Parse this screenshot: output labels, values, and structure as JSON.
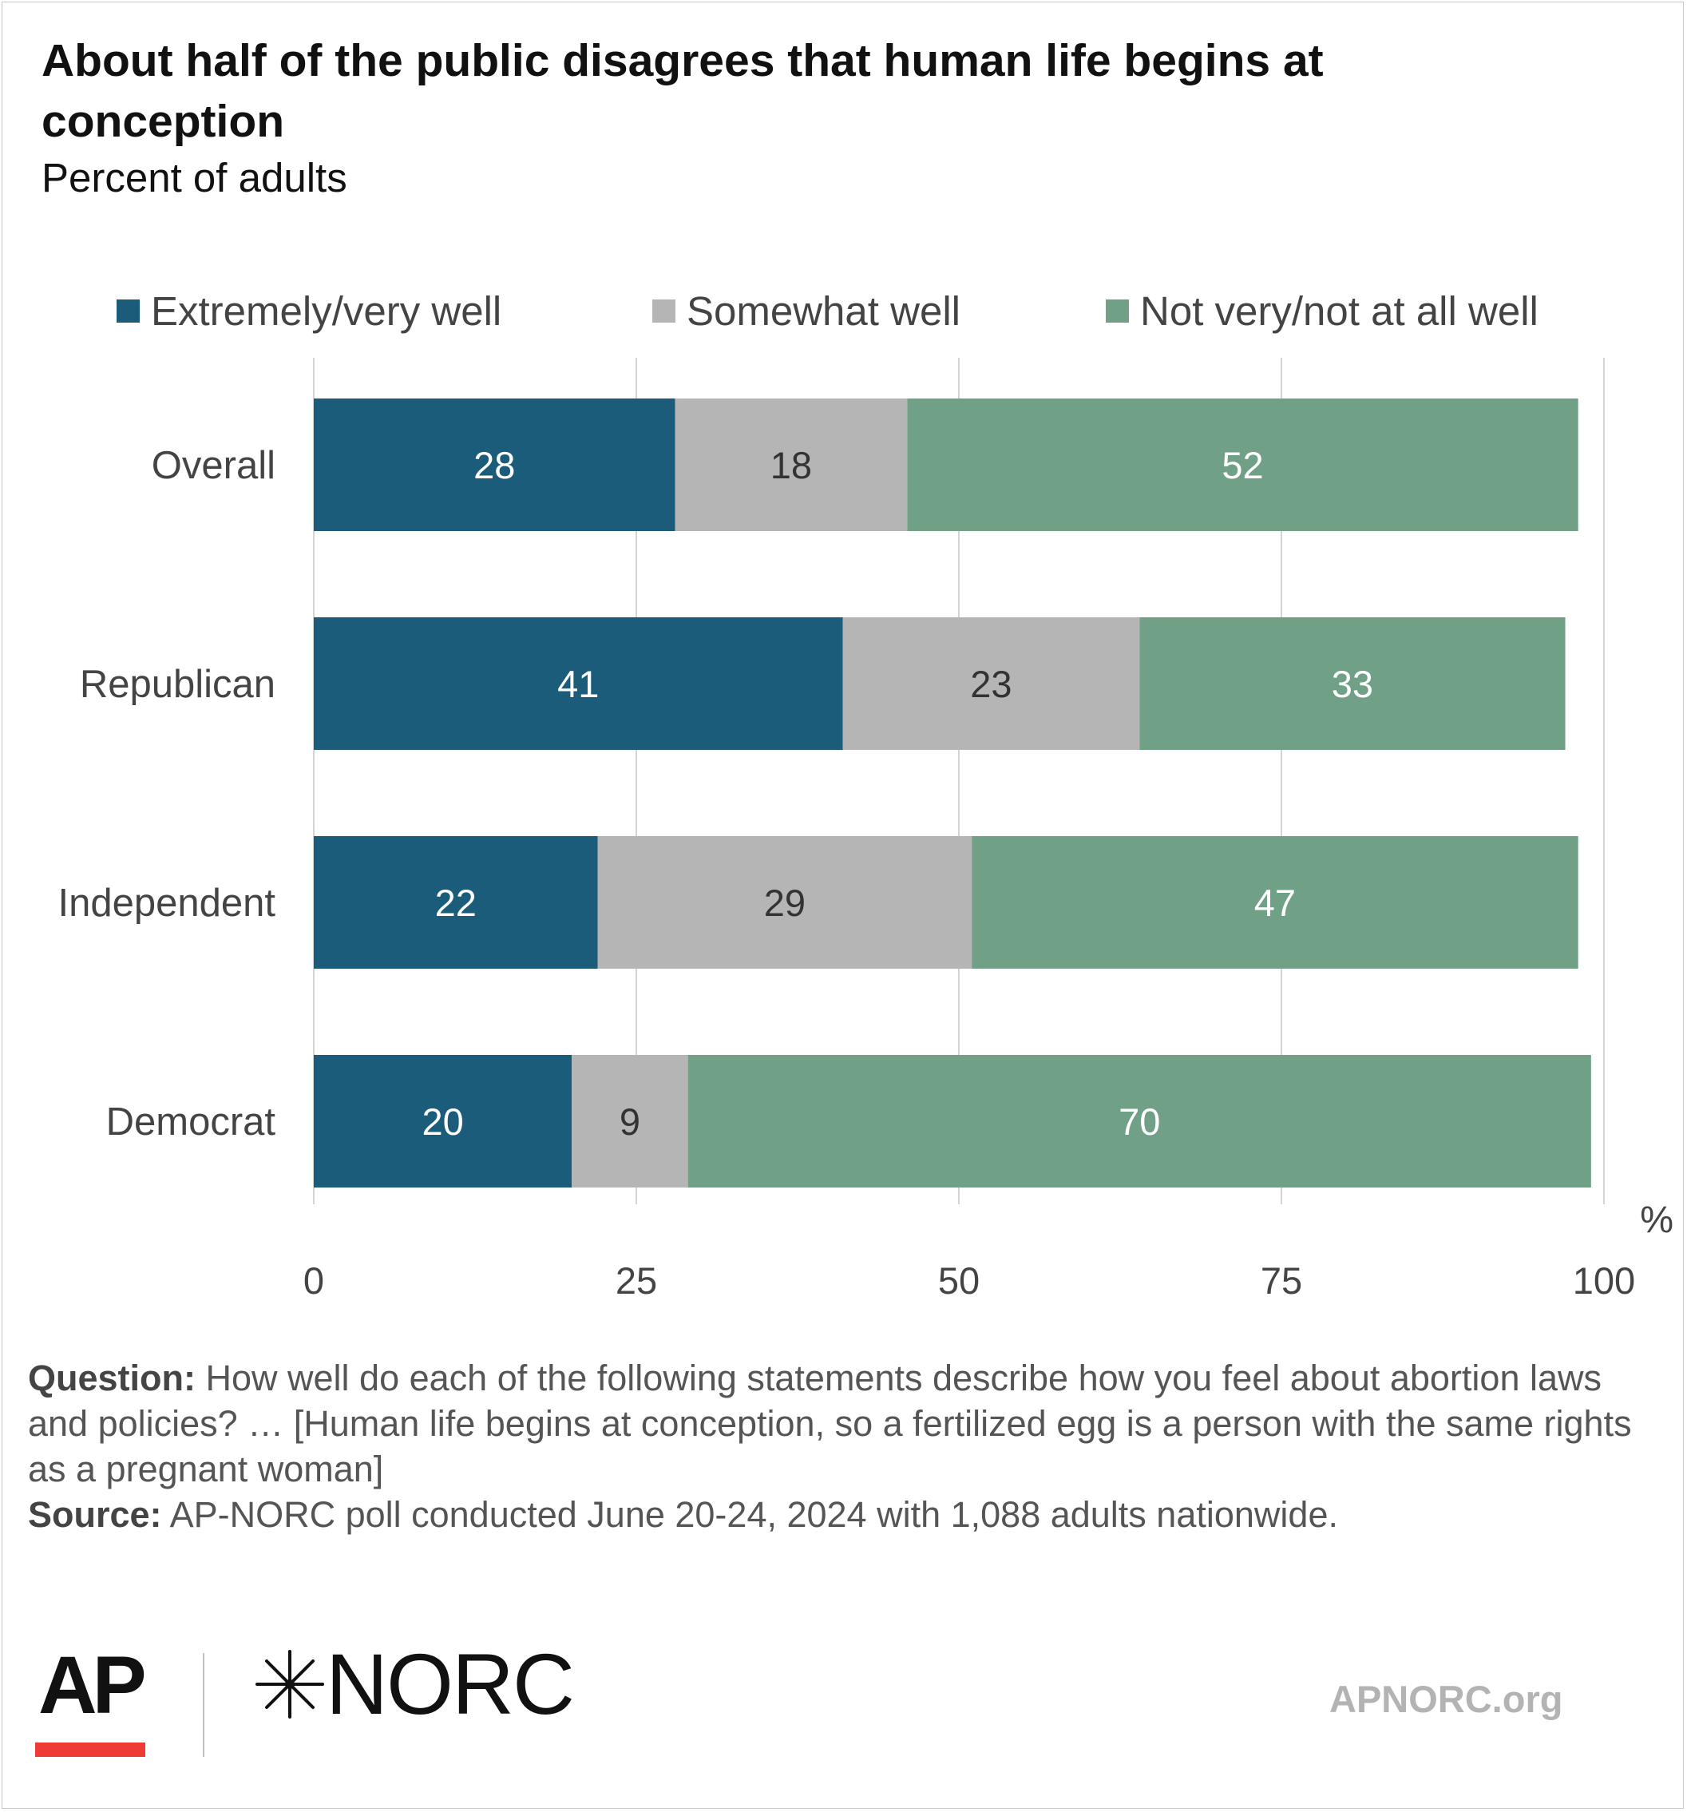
{
  "title": "About half of the public disagrees that human life begins at conception",
  "subtitle": "Percent of adults",
  "legend": [
    {
      "label": "Extremely/very well",
      "color": "#1a5c7a"
    },
    {
      "label": "Somewhat well",
      "color": "#b5b5b5"
    },
    {
      "label": "Not very/not at all well",
      "color": "#70a187"
    }
  ],
  "chart_data": {
    "type": "bar",
    "orientation": "horizontal",
    "stacked": true,
    "categories": [
      "Overall",
      "Republican",
      "Independent",
      "Democrat"
    ],
    "series": [
      {
        "name": "Extremely/very well",
        "color": "#1a5c7a",
        "label_color": "#ffffff",
        "values": [
          28,
          41,
          22,
          20
        ]
      },
      {
        "name": "Somewhat well",
        "color": "#b5b5b5",
        "label_color": "#333333",
        "values": [
          18,
          23,
          29,
          9
        ]
      },
      {
        "name": "Not very/not at all well",
        "color": "#70a187",
        "label_color": "#ffffff",
        "values": [
          52,
          33,
          47,
          70
        ]
      }
    ],
    "xlim": [
      0,
      100
    ],
    "xticks": [
      0,
      25,
      50,
      75,
      100
    ],
    "x_unit": "%",
    "grid": true,
    "legend_position": "top"
  },
  "notes": {
    "question_label": "Question:",
    "question_text": " How well do each of the following statements describe how you feel about abortion laws and policies? … [Human life begins at conception, so a fertilized egg is a person with the same rights as a pregnant woman]",
    "source_label": "Source:",
    "source_text": " AP-NORC poll conducted June 20-24, 2024 with 1,088 adults nationwide."
  },
  "branding": {
    "ap": "AP",
    "norc": "NORC",
    "url": "APNORC.org"
  }
}
